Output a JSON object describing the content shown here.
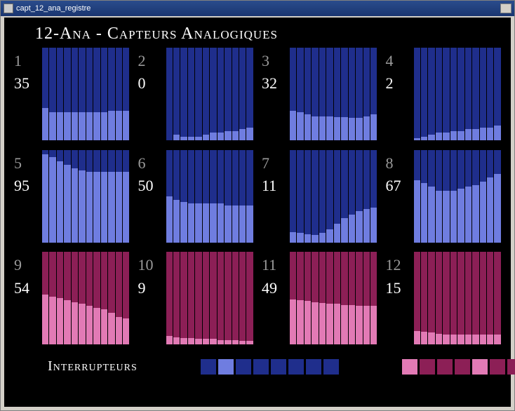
{
  "window": {
    "title": "capt_12_ana_registre"
  },
  "title": "12-Ana - Capteurs Analogiques",
  "footer_title": "Interrupteurs",
  "palette": {
    "blue_dark": "#1f2e8c",
    "blue_light": "#6f7de0",
    "pink_dark": "#8c1f56",
    "pink_light": "#e27ab5",
    "label_idx": "#9a9a9a",
    "label_val": "#ffffff"
  },
  "footer_swatches_a": [
    "#1f2e8c",
    "#6f7de0",
    "#1f2e8c",
    "#1f2e8c",
    "#1f2e8c",
    "#1f2e8c",
    "#1f2e8c",
    "#1f2e8c"
  ],
  "footer_swatches_b": [
    "#e27ab5",
    "#8c1f56",
    "#8c1f56",
    "#8c1f56",
    "#e27ab5",
    "#8c1f56",
    "#8c1f56",
    "#8c1f56"
  ],
  "bars_per_chart": 12,
  "cells": [
    {
      "index": "1",
      "value": "35",
      "scheme": "blue",
      "bars": [
        35,
        30,
        30,
        30,
        30,
        30,
        30,
        30,
        30,
        32,
        32,
        32
      ]
    },
    {
      "index": "2",
      "value": "0",
      "scheme": "blue",
      "bars": [
        0,
        6,
        4,
        4,
        4,
        6,
        8,
        8,
        10,
        10,
        12,
        14
      ]
    },
    {
      "index": "3",
      "value": "32",
      "scheme": "blue",
      "bars": [
        32,
        30,
        28,
        26,
        26,
        26,
        25,
        25,
        24,
        24,
        26,
        28
      ]
    },
    {
      "index": "4",
      "value": "2",
      "scheme": "blue",
      "bars": [
        2,
        4,
        6,
        8,
        8,
        10,
        10,
        12,
        12,
        14,
        14,
        16
      ]
    },
    {
      "index": "5",
      "value": "95",
      "scheme": "blue",
      "bars": [
        95,
        92,
        88,
        84,
        80,
        78,
        76,
        76,
        76,
        76,
        76,
        76
      ]
    },
    {
      "index": "6",
      "value": "50",
      "scheme": "blue",
      "bars": [
        50,
        46,
        44,
        42,
        42,
        42,
        42,
        42,
        40,
        40,
        40,
        40
      ]
    },
    {
      "index": "7",
      "value": "11",
      "scheme": "blue",
      "bars": [
        11,
        10,
        9,
        8,
        10,
        14,
        20,
        26,
        30,
        34,
        36,
        38
      ]
    },
    {
      "index": "8",
      "value": "67",
      "scheme": "blue",
      "bars": [
        67,
        64,
        60,
        56,
        56,
        56,
        58,
        60,
        62,
        66,
        70,
        74
      ]
    },
    {
      "index": "9",
      "value": "54",
      "scheme": "pink",
      "bars": [
        54,
        52,
        50,
        48,
        46,
        44,
        42,
        40,
        38,
        34,
        30,
        28
      ]
    },
    {
      "index": "10",
      "value": "9",
      "scheme": "pink",
      "bars": [
        9,
        8,
        7,
        7,
        6,
        6,
        6,
        5,
        5,
        5,
        4,
        4
      ]
    },
    {
      "index": "11",
      "value": "49",
      "scheme": "pink",
      "bars": [
        49,
        48,
        47,
        46,
        45,
        44,
        44,
        43,
        43,
        42,
        42,
        42
      ]
    },
    {
      "index": "12",
      "value": "15",
      "scheme": "pink",
      "bars": [
        15,
        14,
        13,
        12,
        11,
        11,
        11,
        11,
        11,
        11,
        11,
        11
      ]
    }
  ]
}
